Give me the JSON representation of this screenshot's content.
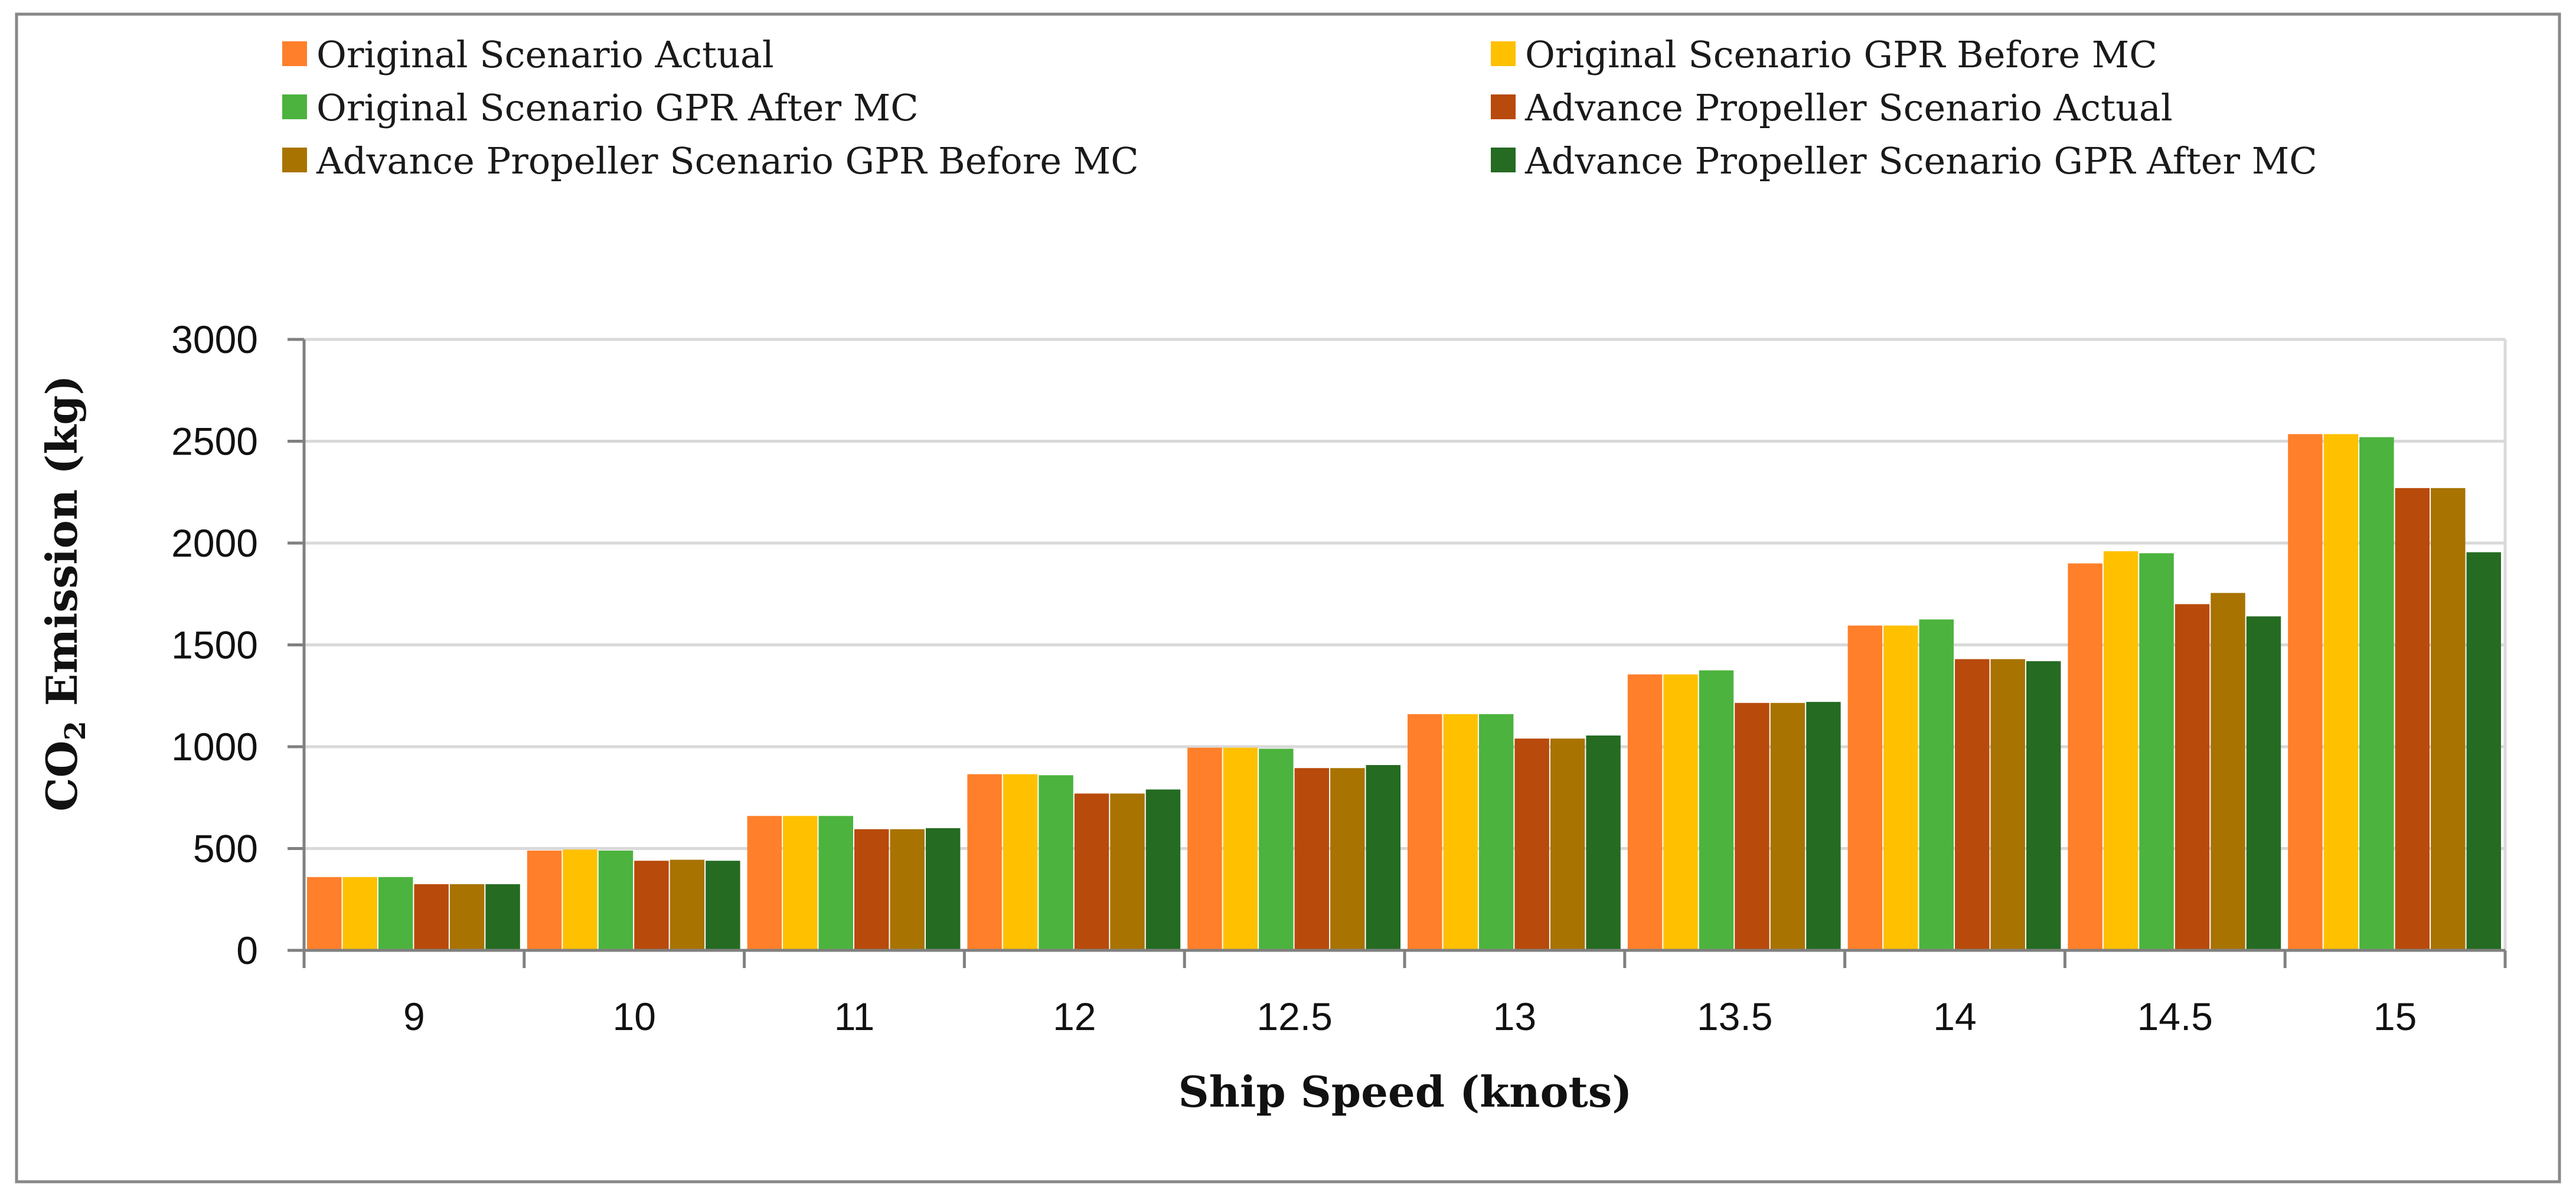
{
  "chart_data": {
    "type": "bar",
    "title": "",
    "xlabel": "Ship Speed (knots)",
    "ylabel": {
      "prefix": "CO",
      "subscript": "2",
      "suffix": " Emission (kg)"
    },
    "ylim": [
      0,
      3000
    ],
    "yticks": [
      "0",
      "500",
      "1000",
      "1500",
      "2000",
      "2500",
      "3000"
    ],
    "grid": true,
    "legend_position": "top",
    "categories": [
      "9",
      "10",
      "11",
      "12",
      "12.5",
      "13",
      "13.5",
      "14",
      "14.5",
      "15"
    ],
    "series": [
      {
        "name": "Original Scenario Actual",
        "color": "#FF7F2A",
        "values": [
          360,
          490,
          660,
          865,
          995,
          1160,
          1355,
          1595,
          1900,
          2535
        ]
      },
      {
        "name": "Original Scenario GPR Before MC",
        "color": "#FFC000",
        "values": [
          360,
          495,
          660,
          865,
          995,
          1160,
          1355,
          1595,
          1960,
          2535
        ]
      },
      {
        "name": "Original Scenario GPR After MC",
        "color": "#4CB33E",
        "values": [
          360,
          490,
          660,
          860,
          990,
          1160,
          1375,
          1625,
          1950,
          2520
        ]
      },
      {
        "name": "Advance Propeller Scenario Actual",
        "color": "#B84A0B",
        "values": [
          325,
          440,
          595,
          770,
          895,
          1040,
          1215,
          1430,
          1700,
          2270
        ]
      },
      {
        "name": "Advance Propeller Scenario GPR Before MC",
        "color": "#A87300",
        "values": [
          325,
          445,
          595,
          770,
          895,
          1040,
          1215,
          1430,
          1755,
          2270
        ]
      },
      {
        "name": "Advance Propeller Scenario GPR After MC",
        "color": "#256B22",
        "values": [
          325,
          440,
          600,
          790,
          910,
          1055,
          1220,
          1420,
          1640,
          1955
        ]
      }
    ]
  },
  "colors": {
    "grid": "#D9D9D9",
    "axis": "#808080",
    "frame": "#888888"
  }
}
